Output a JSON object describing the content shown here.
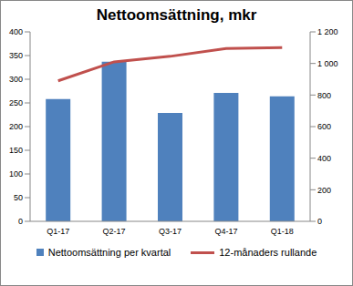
{
  "chart_data": {
    "type": "bar",
    "title": "Nettoomsättning, mkr",
    "categories": [
      "Q1-17",
      "Q2-17",
      "Q3-17",
      "Q4-17",
      "Q1-18"
    ],
    "series": [
      {
        "name": "Nettoomsättning per kvartal",
        "color": "#4f81bd",
        "type": "bar",
        "values": [
          258,
          337,
          229,
          271,
          264
        ]
      },
      {
        "name": "12-månaders rullande",
        "color": "#c0504d",
        "type": "line",
        "axis": "y2",
        "values": [
          890,
          1010,
          1045,
          1095,
          1100
        ]
      }
    ],
    "ylim": [
      0,
      400
    ],
    "yticks": [
      0,
      50,
      100,
      150,
      200,
      250,
      300,
      350,
      400
    ],
    "y2lim": [
      0,
      1200
    ],
    "y2ticks": [
      0,
      200,
      400,
      600,
      800,
      {
        "value": 1000,
        "label": "1 000"
      },
      {
        "value": 1200,
        "label": "1 200"
      }
    ],
    "grid": false,
    "legend": "bottom"
  }
}
